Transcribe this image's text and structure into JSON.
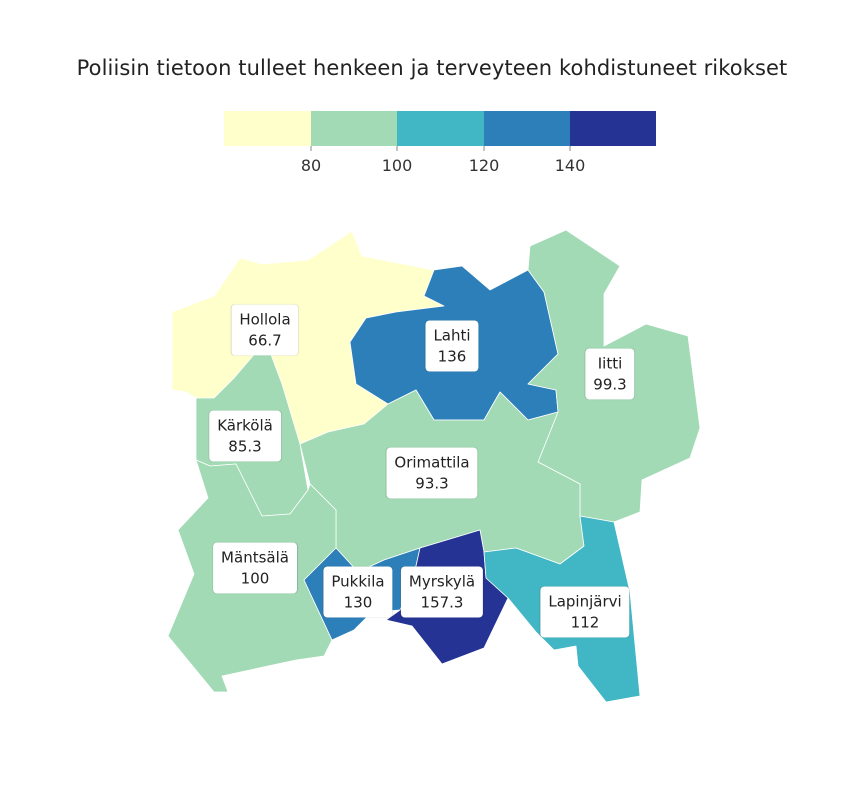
{
  "title": "Poliisin tietoon tulleet henkeen ja terveyteen kohdistuneet rikokset",
  "legend": {
    "colors": [
      "#ffffcc",
      "#a1dab4",
      "#41b6c4",
      "#2c7fb8",
      "#253494"
    ],
    "ticks": [
      "80",
      "100",
      "120",
      "140"
    ],
    "breaks": [
      80,
      100,
      120,
      140
    ]
  },
  "regions": [
    {
      "name": "Hollola",
      "value": "66.7",
      "color": "#ffffcc"
    },
    {
      "name": "Lahti",
      "value": "136",
      "color": "#2c7fb8"
    },
    {
      "name": "Iitti",
      "value": "99.3",
      "color": "#a1dab4"
    },
    {
      "name": "Kärkölä",
      "value": "85.3",
      "color": "#a1dab4"
    },
    {
      "name": "Orimattila",
      "value": "93.3",
      "color": "#a1dab4"
    },
    {
      "name": "Mäntsälä",
      "value": "100",
      "color": "#a1dab4"
    },
    {
      "name": "Pukkila",
      "value": "130",
      "color": "#2c7fb8"
    },
    {
      "name": "Myrskylä",
      "value": "157.3",
      "color": "#253494"
    },
    {
      "name": "Lapinjärvi",
      "value": "112",
      "color": "#41b6c4"
    }
  ]
}
